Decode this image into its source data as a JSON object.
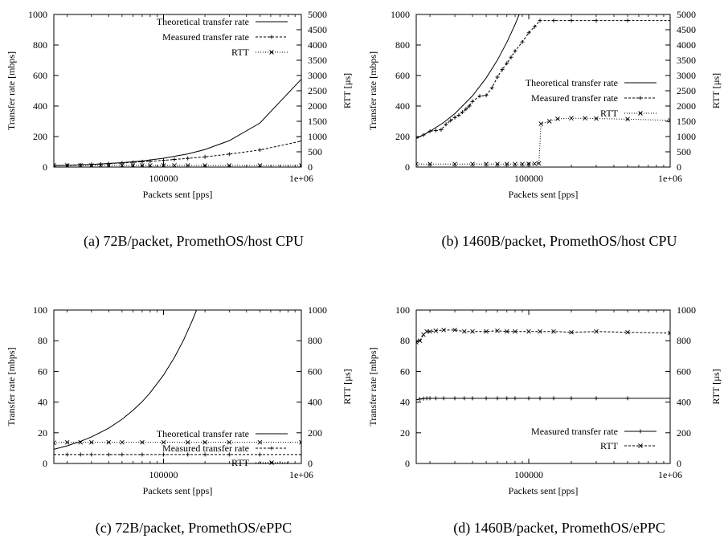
{
  "chart_data": [
    {
      "type": "line",
      "caption": "(a) 72B/packet, PromethOS/host CPU",
      "xlabel": "Packets sent [pps]",
      "ylabel": "Transfer rate [mbps]",
      "y2label": "RTT [µs]",
      "xscale": "log",
      "xlim": [
        16000,
        1000000
      ],
      "ylim": [
        0,
        1000
      ],
      "y2lim": [
        0,
        5000
      ],
      "x_ticks": [
        {
          "v": 100000,
          "label": "100000"
        },
        {
          "v": 1000000,
          "label": "1e+06"
        }
      ],
      "y_ticks": [
        {
          "v": 0,
          "label": "0"
        },
        {
          "v": 200,
          "label": "200"
        },
        {
          "v": 400,
          "label": "400"
        },
        {
          "v": 600,
          "label": "600"
        },
        {
          "v": 800,
          "label": "800"
        },
        {
          "v": 1000,
          "label": "1000"
        }
      ],
      "y2_ticks": [
        {
          "v": 0,
          "label": "0"
        },
        {
          "v": 500,
          "label": "500"
        },
        {
          "v": 1000,
          "label": "1000"
        },
        {
          "v": 1500,
          "label": "1500"
        },
        {
          "v": 2000,
          "label": "2000"
        },
        {
          "v": 2500,
          "label": "2500"
        },
        {
          "v": 3000,
          "label": "3000"
        },
        {
          "v": 3500,
          "label": "3500"
        },
        {
          "v": 4000,
          "label": "4000"
        },
        {
          "v": 4500,
          "label": "4500"
        },
        {
          "v": 5000,
          "label": "5000"
        }
      ],
      "legend_position": "top-right",
      "series": [
        {
          "name": "Theoretical transfer rate",
          "axis": "left",
          "style": "solid",
          "marker": "none",
          "x": [
            16000,
            30000,
            50000,
            70000,
            100000,
            150000,
            200000,
            300000,
            500000,
            1000000
          ],
          "y": [
            9,
            17,
            29,
            40,
            58,
            86,
            115,
            173,
            288,
            576
          ]
        },
        {
          "name": "Measured transfer rate",
          "axis": "left",
          "style": "dashed",
          "marker": "plus",
          "x": [
            16000,
            20000,
            25000,
            30000,
            35000,
            40000,
            50000,
            60000,
            70000,
            80000,
            100000,
            120000,
            150000,
            200000,
            300000,
            500000,
            1000000
          ],
          "y": [
            9,
            11,
            14,
            17,
            20,
            23,
            27,
            31,
            35,
            38,
            44,
            50,
            57,
            67,
            85,
            112,
            170
          ]
        },
        {
          "name": "RTT",
          "axis": "right",
          "style": "dotted",
          "marker": "cross",
          "x": [
            16000,
            20000,
            25000,
            30000,
            35000,
            40000,
            50000,
            60000,
            70000,
            80000,
            100000,
            120000,
            150000,
            200000,
            300000,
            500000,
            1000000
          ],
          "y": [
            60,
            55,
            55,
            55,
            55,
            55,
            55,
            55,
            55,
            55,
            55,
            55,
            55,
            55,
            55,
            55,
            55
          ]
        }
      ]
    },
    {
      "type": "line",
      "caption": "(b) 1460B/packet, PromethOS/host CPU",
      "xlabel": "Packets sent [pps]",
      "ylabel": "Transfer rate [mbps]",
      "y2label": "RTT [µs]",
      "xscale": "log",
      "xlim": [
        16000,
        1000000
      ],
      "ylim": [
        0,
        1000
      ],
      "y2lim": [
        0,
        5000
      ],
      "x_ticks": [
        {
          "v": 100000,
          "label": "100000"
        },
        {
          "v": 1000000,
          "label": "1e+06"
        }
      ],
      "y_ticks": [
        {
          "v": 0,
          "label": "0"
        },
        {
          "v": 200,
          "label": "200"
        },
        {
          "v": 400,
          "label": "400"
        },
        {
          "v": 600,
          "label": "600"
        },
        {
          "v": 800,
          "label": "800"
        },
        {
          "v": 1000,
          "label": "1000"
        }
      ],
      "y2_ticks": [
        {
          "v": 0,
          "label": "0"
        },
        {
          "v": 500,
          "label": "500"
        },
        {
          "v": 1000,
          "label": "1000"
        },
        {
          "v": 1500,
          "label": "1500"
        },
        {
          "v": 2000,
          "label": "2000"
        },
        {
          "v": 2500,
          "label": "2500"
        },
        {
          "v": 3000,
          "label": "3000"
        },
        {
          "v": 3500,
          "label": "3500"
        },
        {
          "v": 4000,
          "label": "4000"
        },
        {
          "v": 4500,
          "label": "4500"
        },
        {
          "v": 5000,
          "label": "5000"
        }
      ],
      "legend_position": "center-right",
      "series": [
        {
          "name": "Theoretical transfer rate",
          "axis": "left",
          "style": "solid",
          "marker": "none",
          "x": [
            16000,
            20000,
            25000,
            30000,
            40000,
            50000,
            60000,
            70000,
            80000,
            85600
          ],
          "y": [
            187,
            234,
            292,
            350,
            467,
            584,
            701,
            818,
            934,
            1000
          ]
        },
        {
          "name": "Measured transfer rate",
          "axis": "left",
          "style": "dashed",
          "marker": "plus",
          "x": [
            16000,
            18000,
            20000,
            22000,
            24000,
            26000,
            28000,
            30000,
            32000,
            34000,
            36000,
            38000,
            40000,
            45000,
            50000,
            55000,
            60000,
            65000,
            70000,
            75000,
            80000,
            90000,
            100000,
            110000,
            120000,
            150000,
            200000,
            300000,
            500000,
            1000000
          ],
          "y": [
            190,
            210,
            235,
            240,
            245,
            280,
            305,
            325,
            340,
            360,
            380,
            400,
            430,
            465,
            470,
            520,
            590,
            640,
            680,
            720,
            760,
            820,
            880,
            920,
            960,
            960,
            960,
            960,
            960,
            960
          ]
        },
        {
          "name": "RTT",
          "axis": "right",
          "style": "dotted",
          "marker": "cross",
          "x": [
            16000,
            20000,
            30000,
            40000,
            50000,
            60000,
            70000,
            80000,
            90000,
            100000,
            110000,
            118000,
            122000,
            140000,
            160000,
            200000,
            250000,
            300000,
            500000,
            1000000
          ],
          "y": [
            100,
            100,
            100,
            100,
            100,
            100,
            100,
            100,
            100,
            100,
            110,
            120,
            1420,
            1500,
            1580,
            1600,
            1600,
            1590,
            1570,
            1530
          ]
        }
      ]
    },
    {
      "type": "line",
      "caption": "(c) 72B/packet, PromethOS/ePPC",
      "xlabel": "Packets sent [pps]",
      "ylabel": "Transfer rate [mbps]",
      "y2label": "RTT [µs]",
      "xscale": "log",
      "xlim": [
        16000,
        1000000
      ],
      "ylim": [
        0,
        100
      ],
      "y2lim": [
        0,
        1000
      ],
      "x_ticks": [
        {
          "v": 100000,
          "label": "100000"
        },
        {
          "v": 1000000,
          "label": "1e+06"
        }
      ],
      "y_ticks": [
        {
          "v": 0,
          "label": "0"
        },
        {
          "v": 20,
          "label": "20"
        },
        {
          "v": 40,
          "label": "40"
        },
        {
          "v": 60,
          "label": "60"
        },
        {
          "v": 80,
          "label": "80"
        },
        {
          "v": 100,
          "label": "100"
        }
      ],
      "y2_ticks": [
        {
          "v": 0,
          "label": "0"
        },
        {
          "v": 200,
          "label": "200"
        },
        {
          "v": 400,
          "label": "400"
        },
        {
          "v": 600,
          "label": "600"
        },
        {
          "v": 800,
          "label": "800"
        },
        {
          "v": 1000,
          "label": "1000"
        }
      ],
      "legend_position": "center-right",
      "series": [
        {
          "name": "Theoretical transfer rate",
          "axis": "left",
          "style": "solid",
          "marker": "none",
          "x": [
            16000,
            20000,
            25000,
            30000,
            40000,
            50000,
            60000,
            70000,
            80000,
            100000,
            120000,
            140000,
            160000,
            173600
          ],
          "y": [
            9.2,
            11.5,
            14.4,
            17.3,
            23,
            28.8,
            34.6,
            40.3,
            46.1,
            57.6,
            69.1,
            80.6,
            92.2,
            100
          ]
        },
        {
          "name": "Measured transfer rate",
          "axis": "left",
          "style": "dashed",
          "marker": "plus",
          "x": [
            16000,
            20000,
            25000,
            30000,
            40000,
            50000,
            70000,
            100000,
            150000,
            200000,
            300000,
            500000,
            1000000
          ],
          "y": [
            5.8,
            5.8,
            5.8,
            5.8,
            5.8,
            5.8,
            5.8,
            5.8,
            5.8,
            5.8,
            5.8,
            5.8,
            5.8
          ]
        },
        {
          "name": "RTT",
          "axis": "right",
          "style": "dotted",
          "marker": "cross",
          "x": [
            16000,
            20000,
            25000,
            30000,
            40000,
            50000,
            70000,
            100000,
            150000,
            200000,
            300000,
            500000,
            1000000
          ],
          "y": [
            135,
            138,
            138,
            138,
            138,
            138,
            138,
            138,
            138,
            138,
            138,
            138,
            138
          ]
        }
      ]
    },
    {
      "type": "line",
      "caption": "(d) 1460B/packet, PromethOS/ePPC",
      "xlabel": "Packets sent [pps]",
      "ylabel": "Transfer rate [mbps]",
      "y2label": "RTT [µs]",
      "xscale": "log",
      "xlim": [
        16000,
        1000000
      ],
      "ylim": [
        0,
        100
      ],
      "y2lim": [
        0,
        1000
      ],
      "x_ticks": [
        {
          "v": 100000,
          "label": "100000"
        },
        {
          "v": 1000000,
          "label": "1e+06"
        }
      ],
      "y_ticks": [
        {
          "v": 0,
          "label": "0"
        },
        {
          "v": 20,
          "label": "20"
        },
        {
          "v": 40,
          "label": "40"
        },
        {
          "v": 60,
          "label": "60"
        },
        {
          "v": 80,
          "label": "80"
        },
        {
          "v": 100,
          "label": "100"
        }
      ],
      "y2_ticks": [
        {
          "v": 0,
          "label": "0"
        },
        {
          "v": 200,
          "label": "200"
        },
        {
          "v": 400,
          "label": "400"
        },
        {
          "v": 600,
          "label": "600"
        },
        {
          "v": 800,
          "label": "800"
        },
        {
          "v": 1000,
          "label": "1000"
        }
      ],
      "legend_position": "bottom-right",
      "series": [
        {
          "name": "Measured transfer rate",
          "axis": "left",
          "style": "solid",
          "marker": "plus",
          "x": [
            16000,
            17000,
            18000,
            19000,
            20000,
            22000,
            25000,
            30000,
            35000,
            40000,
            50000,
            60000,
            70000,
            80000,
            100000,
            120000,
            150000,
            200000,
            300000,
            500000,
            1000000
          ],
          "y": [
            41.5,
            42,
            42.3,
            42.5,
            42.5,
            42.5,
            42.5,
            42.5,
            42.5,
            42.5,
            42.5,
            42.5,
            42.5,
            42.5,
            42.5,
            42.5,
            42.5,
            42.5,
            42.5,
            42.5,
            42.5
          ]
        },
        {
          "name": "RTT",
          "axis": "right",
          "style": "dashed",
          "marker": "cross",
          "x": [
            16000,
            17000,
            18000,
            19000,
            20000,
            22000,
            25000,
            30000,
            35000,
            40000,
            50000,
            60000,
            70000,
            80000,
            100000,
            120000,
            150000,
            200000,
            300000,
            500000,
            1000000
          ],
          "y": [
            790,
            800,
            840,
            860,
            860,
            865,
            870,
            870,
            860,
            860,
            860,
            865,
            860,
            860,
            860,
            860,
            860,
            855,
            860,
            855,
            850
          ]
        }
      ]
    }
  ]
}
